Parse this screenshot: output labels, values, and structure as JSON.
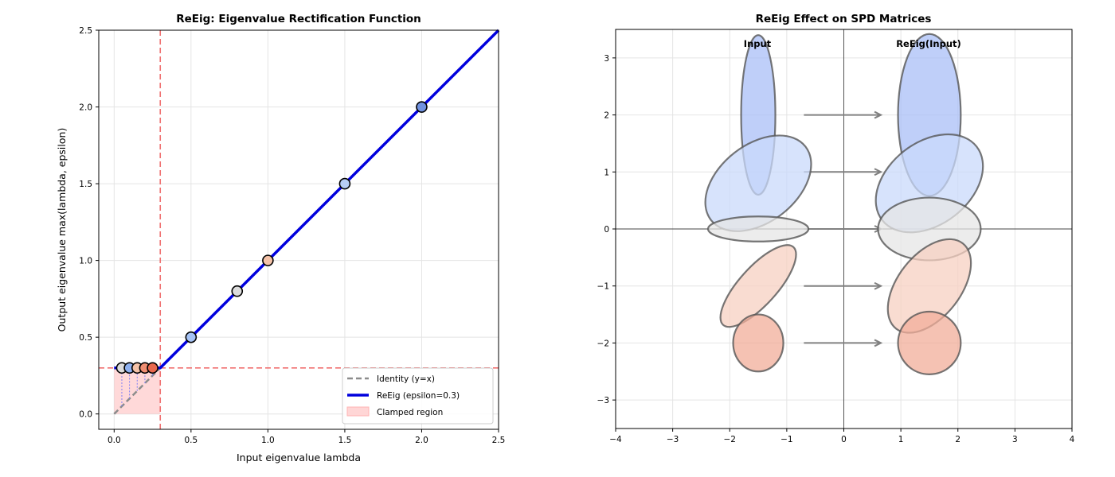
{
  "chart_data": [
    {
      "type": "line",
      "title": "ReEig: Eigenvalue Rectification Function",
      "xlabel": "Input eigenvalue lambda",
      "ylabel": "Output eigenvalue max(lambda, epsilon)",
      "xlim": [
        -0.1,
        2.5
      ],
      "ylim": [
        -0.1,
        2.5
      ],
      "xticks": [
        "0.0",
        "0.5",
        "1.0",
        "1.5",
        "2.0",
        "2.5"
      ],
      "yticks": [
        "0.0",
        "0.5",
        "1.0",
        "1.5",
        "2.0",
        "2.5"
      ],
      "grid": true,
      "epsilon": 0.3,
      "legend_position": "lower-right",
      "series": [
        {
          "name": "Identity (y=x)",
          "style": "dashed",
          "color": "#8c8c8c",
          "x": [
            0,
            0.3
          ],
          "y": [
            0,
            0.3
          ]
        },
        {
          "name": "ReEig (epsilon=0.3)",
          "style": "solid",
          "color": "#0000dd",
          "x": [
            0,
            0.3,
            2.5
          ],
          "y": [
            0.3,
            0.3,
            2.5
          ]
        }
      ],
      "shaded_region": {
        "name": "Clamped region",
        "x": [
          0,
          0.3
        ],
        "y": [
          0,
          0.3
        ],
        "color": "#ffb3b3"
      },
      "points": [
        {
          "x": 0.05,
          "y": 0.3,
          "color": "#dcdcdc"
        },
        {
          "x": 0.1,
          "y": 0.3,
          "color": "#8fb1f0"
        },
        {
          "x": 0.15,
          "y": 0.3,
          "color": "#f4c2a8"
        },
        {
          "x": 0.2,
          "y": 0.3,
          "color": "#ef8e72"
        },
        {
          "x": 0.25,
          "y": 0.3,
          "color": "#e8694e"
        },
        {
          "x": 0.5,
          "y": 0.5,
          "color": "#a6c3f5"
        },
        {
          "x": 0.8,
          "y": 0.8,
          "color": "#dcdcdc"
        },
        {
          "x": 1.0,
          "y": 1.0,
          "color": "#f4c2a8"
        },
        {
          "x": 1.5,
          "y": 1.5,
          "color": "#b7cdf5"
        },
        {
          "x": 2.0,
          "y": 2.0,
          "color": "#7192e0"
        }
      ]
    },
    {
      "type": "diagram",
      "title": "ReEig Effect on SPD Matrices",
      "xlim": [
        -4,
        4
      ],
      "ylim": [
        -3.5,
        3.5
      ],
      "xticks": [
        "−4",
        "−3",
        "−2",
        "−1",
        "0",
        "1",
        "2",
        "3",
        "4"
      ],
      "yticks": [
        "−3",
        "−2",
        "−1",
        "0",
        "1",
        "2",
        "3"
      ],
      "grid": true,
      "labels": {
        "input": "Input",
        "output": "ReEig(Input)"
      },
      "input_ellipses": [
        {
          "cx": -1.5,
          "cy": 2.0,
          "rx": 0.3,
          "ry": 1.4,
          "angle": 0,
          "color": "#a9bff7"
        },
        {
          "cx": -1.5,
          "cy": 0.8,
          "rx": 1.05,
          "ry": 0.68,
          "angle": -38,
          "color": "#c9d9fb"
        },
        {
          "cx": -1.5,
          "cy": 0.0,
          "rx": 0.88,
          "ry": 0.22,
          "angle": 0,
          "color": "#e6e6e6"
        },
        {
          "cx": -1.5,
          "cy": -1.0,
          "rx": 0.92,
          "ry": 0.33,
          "angle": -48,
          "color": "#f7d0c2"
        },
        {
          "cx": -1.5,
          "cy": -2.0,
          "rx": 0.44,
          "ry": 0.5,
          "angle": 0,
          "color": "#f2ae9a"
        }
      ],
      "output_ellipses": [
        {
          "cx": 1.5,
          "cy": 2.0,
          "rx": 0.55,
          "ry": 1.42,
          "angle": 0,
          "color": "#a9bff7"
        },
        {
          "cx": 1.5,
          "cy": 0.8,
          "rx": 1.05,
          "ry": 0.72,
          "angle": -38,
          "color": "#c9d9fb"
        },
        {
          "cx": 1.5,
          "cy": 0.0,
          "rx": 0.9,
          "ry": 0.55,
          "angle": 0,
          "color": "#e6e6e6"
        },
        {
          "cx": 1.5,
          "cy": -1.0,
          "rx": 0.95,
          "ry": 0.55,
          "angle": -52,
          "color": "#f7d0c2"
        },
        {
          "cx": 1.5,
          "cy": -2.0,
          "rx": 0.55,
          "ry": 0.55,
          "angle": 0,
          "color": "#f2ae9a"
        }
      ],
      "arrows": [
        {
          "x0": -0.7,
          "x1": 0.65,
          "y": 2
        },
        {
          "x0": -0.7,
          "x1": 0.65,
          "y": 1
        },
        {
          "x0": -0.7,
          "x1": 0.65,
          "y": 0
        },
        {
          "x0": -0.7,
          "x1": 0.65,
          "y": -1
        },
        {
          "x0": -0.7,
          "x1": 0.65,
          "y": -2
        }
      ]
    }
  ]
}
